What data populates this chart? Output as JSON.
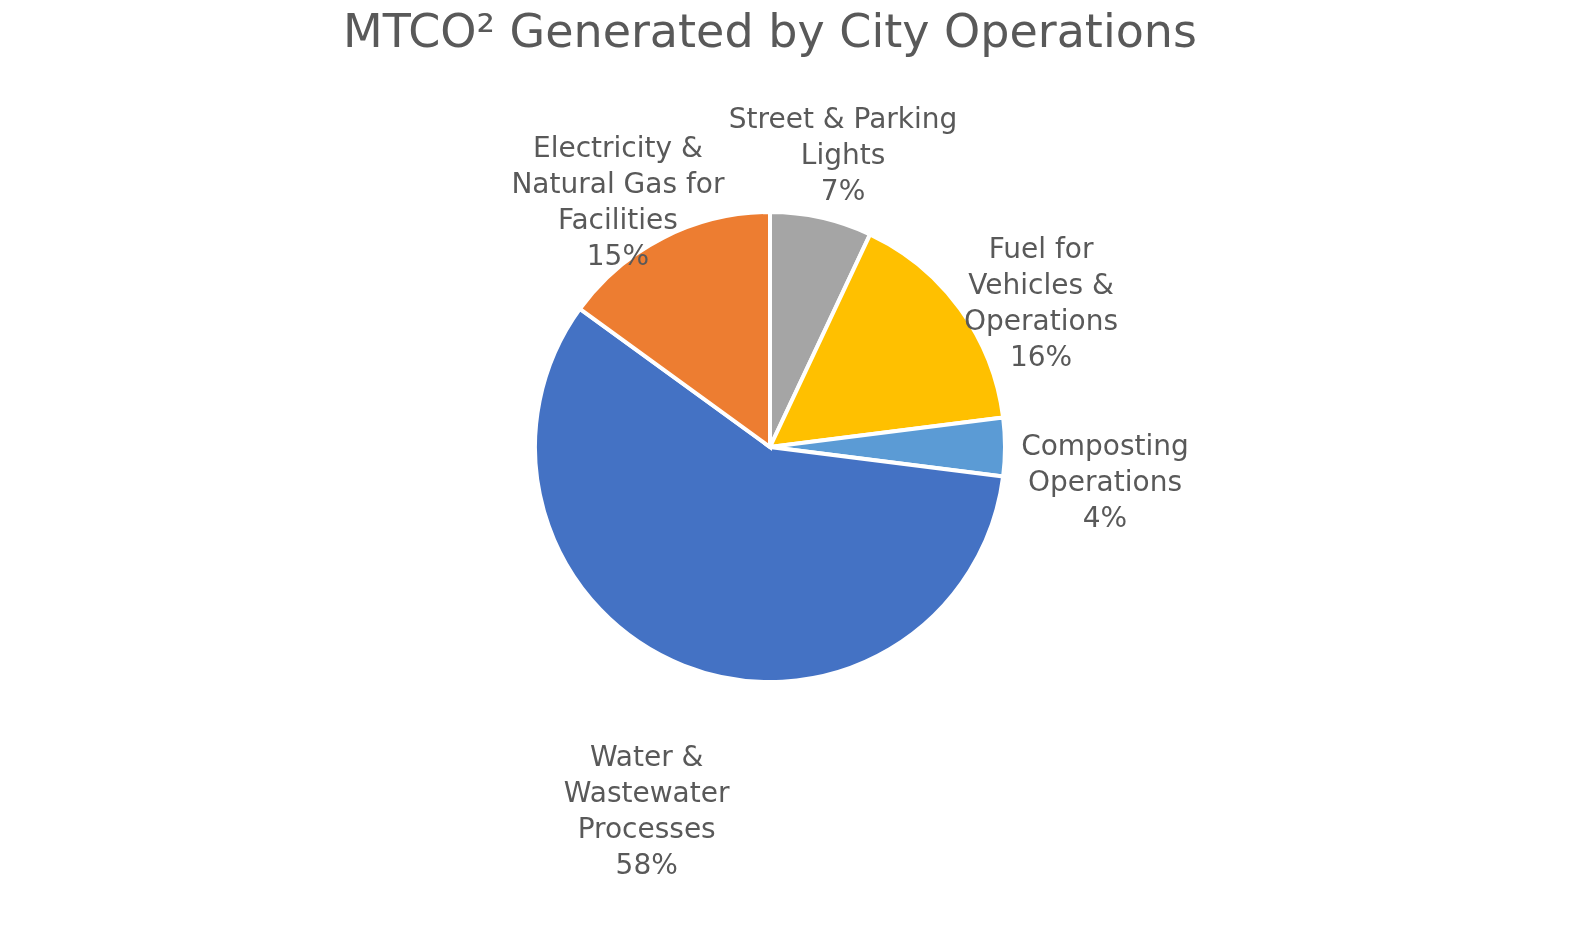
{
  "chart_data": {
    "type": "pie",
    "title": "MTCO² Generated by City Operations",
    "categories": [
      "Street & Parking Lights",
      "Fuel for Vehicles & Operations",
      "Composting Operations",
      "Water & Wastewater Processes",
      "Electricity & Natural Gas for Facilities"
    ],
    "values": [
      7,
      16,
      4,
      58,
      15
    ],
    "colors": [
      "#a5a5a5",
      "#ffc000",
      "#5b9bd5",
      "#4472c4",
      "#ed7d31"
    ],
    "value_labels": [
      "7%",
      "16%",
      "4%",
      "58%",
      "15%"
    ]
  }
}
